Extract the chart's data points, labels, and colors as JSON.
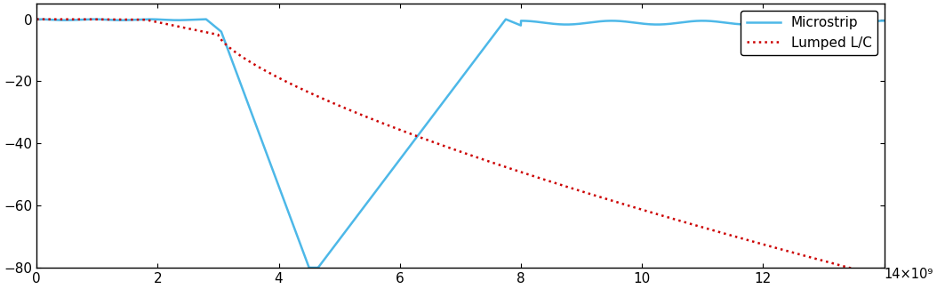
{
  "title": "",
  "xlabel": "",
  "ylabel": "",
  "xlim": [
    0,
    14000000000.0
  ],
  "ylim": [
    -80,
    5
  ],
  "yticks": [
    0,
    -20,
    -40,
    -60,
    -80
  ],
  "xticks": [
    0,
    2000000000.0,
    4000000000.0,
    6000000000.0,
    8000000000.0,
    10000000000.0,
    12000000000.0,
    14000000000.0
  ],
  "microstrip_color": "#4db8e8",
  "lumped_color": "#cc0000",
  "legend_labels": [
    "Microstrip",
    "Lumped L/C"
  ],
  "background_color": "#ffffff",
  "line_width": 1.8
}
